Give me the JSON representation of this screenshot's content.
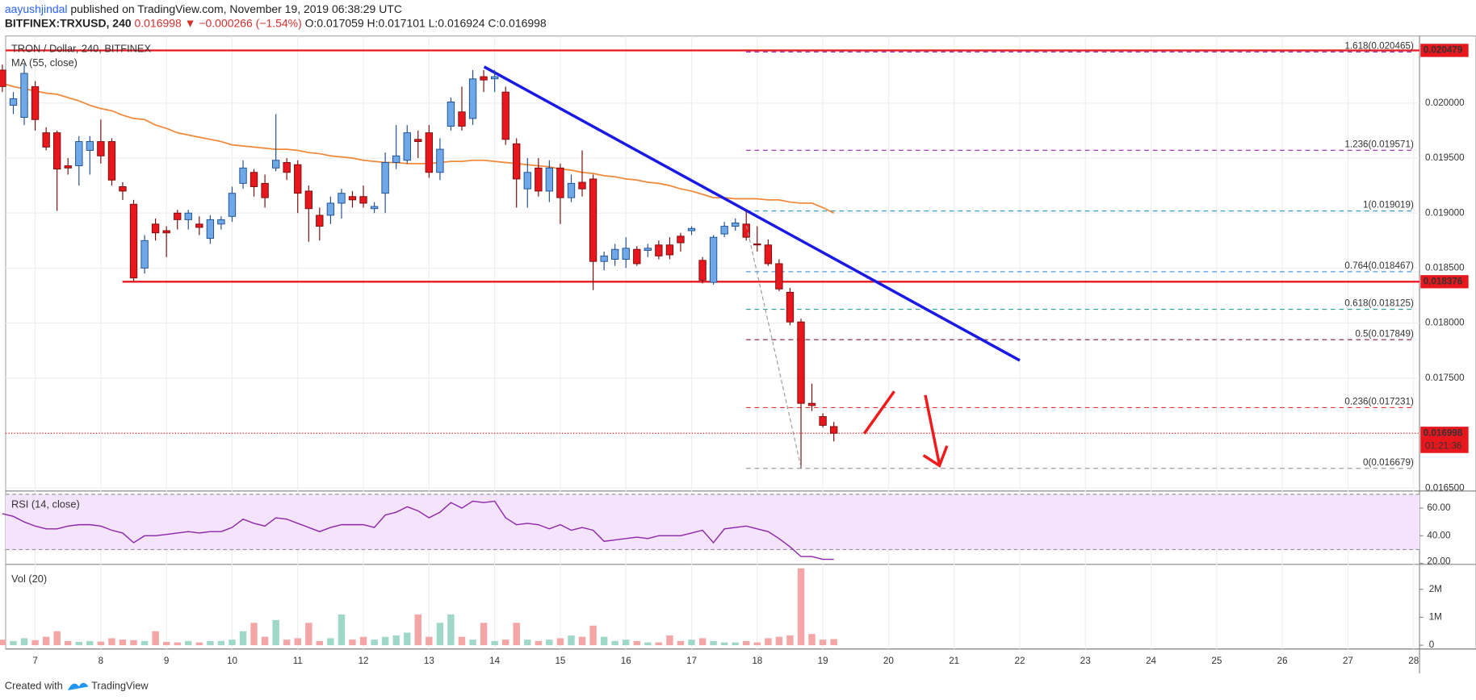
{
  "chart_data": {
    "type": "candlestick",
    "title": "TRON / Dollar, 240, BITFINEX",
    "publisher": "aayushjindal",
    "published": "published on TradingView.com, November 19, 2019 06:38:29 UTC",
    "symbol": "BITFINEX:TRXUSD, 240",
    "change": "0.016998 ▼ −0.000266 (−1.54%)",
    "ohlc_text": "O:0.017059 H:0.017101 L:0.016924 C:0.016998",
    "footer": "Created with",
    "brand": "TradingView",
    "x": [
      6.5,
      6.667,
      6.833,
      7,
      7.167,
      7.333,
      7.5,
      7.667,
      7.833,
      8,
      8.167,
      8.333,
      8.5,
      8.667,
      8.833,
      9,
      9.167,
      9.333,
      9.5,
      9.667,
      9.833,
      10,
      10.167,
      10.333,
      10.5,
      10.667,
      10.833,
      11,
      11.167,
      11.333,
      11.5,
      11.667,
      11.833,
      12,
      12.167,
      12.333,
      12.5,
      12.667,
      12.833,
      13,
      13.167,
      13.333,
      13.5,
      13.667,
      13.833,
      14,
      14.167,
      14.333,
      14.5,
      14.667,
      14.833,
      15,
      15.167,
      15.333,
      15.5,
      15.667,
      15.833,
      16,
      16.167,
      16.333,
      16.5,
      16.667,
      16.833,
      17,
      17.167,
      17.333,
      17.5,
      17.667,
      17.833,
      18,
      18.167,
      18.333,
      18.5,
      18.667,
      18.833,
      19,
      19.167
    ],
    "xlim": [
      6.55,
      28.09
    ],
    "xticks": [
      7,
      8,
      9,
      10,
      11,
      12,
      13,
      14,
      15,
      16,
      17,
      18,
      19,
      20,
      21,
      22,
      23,
      24,
      25,
      26,
      27,
      28
    ],
    "open": [
      0.0203,
      0.01998,
      0.01987,
      0.02015,
      0.01973,
      0.01973,
      0.01943,
      0.01943,
      0.01957,
      0.01965,
      0.01965,
      0.01924,
      0.01908,
      0.0185,
      0.0189,
      0.01884,
      0.019,
      0.01894,
      0.0189,
      0.01877,
      0.0189,
      0.01897,
      0.01927,
      0.01937,
      0.01927,
      0.01941,
      0.01946,
      0.01944,
      0.0192,
      0.01898,
      0.01898,
      0.01909,
      0.01915,
      0.01915,
      0.01904,
      0.01918,
      0.01946,
      0.01948,
      0.01967,
      0.01973,
      0.01937,
      0.01979,
      0.01992,
      0.01986,
      0.02024,
      0.02022,
      0.0201,
      0.01963,
      0.01922,
      0.01941,
      0.0192,
      0.01941,
      0.01914,
      0.01928,
      0.01931,
      0.01856,
      0.01858,
      0.01858,
      0.01867,
      0.01866,
      0.01871,
      0.01871,
      0.01879,
      0.01884,
      0.01857,
      0.01837,
      0.01881,
      0.01888,
      0.0189,
      0.01872,
      0.01871,
      0.01854,
      0.01828,
      0.01801,
      0.01727,
      0.01715,
      0.017059
    ],
    "high": [
      0.02035,
      0.0201,
      0.02035,
      0.0202,
      0.01978,
      0.01975,
      0.0195,
      0.0197,
      0.0197,
      0.01985,
      0.01968,
      0.01928,
      0.01912,
      0.0188,
      0.01895,
      0.01888,
      0.01903,
      0.01903,
      0.01897,
      0.01898,
      0.01897,
      0.01924,
      0.01948,
      0.0194,
      0.01935,
      0.0199,
      0.0195,
      0.01948,
      0.01925,
      0.01905,
      0.01915,
      0.01922,
      0.0192,
      0.01925,
      0.0191,
      0.01955,
      0.0198,
      0.0198,
      0.01975,
      0.0198,
      0.01968,
      0.02005,
      0.02015,
      0.0203,
      0.0203,
      0.0203,
      0.02015,
      0.01968,
      0.0195,
      0.0195,
      0.01948,
      0.01945,
      0.01935,
      0.01957,
      0.01935,
      0.01865,
      0.01872,
      0.01878,
      0.0187,
      0.01872,
      0.01875,
      0.01878,
      0.01882,
      0.01888,
      0.0186,
      0.0188,
      0.01892,
      0.01895,
      0.01902,
      0.01888,
      0.01876,
      0.01858,
      0.01832,
      0.01804,
      0.01745,
      0.01718,
      0.017101
    ],
    "low": [
      0.0201,
      0.0199,
      0.0198,
      0.01975,
      0.01957,
      0.01902,
      0.01935,
      0.01925,
      0.01935,
      0.01945,
      0.01925,
      0.01912,
      0.01838,
      0.01845,
      0.01875,
      0.0186,
      0.01885,
      0.01885,
      0.0188,
      0.01872,
      0.01885,
      0.01892,
      0.01922,
      0.01915,
      0.01905,
      0.01938,
      0.0193,
      0.019,
      0.01874,
      0.01875,
      0.0189,
      0.01895,
      0.01905,
      0.01905,
      0.019,
      0.019,
      0.0194,
      0.01945,
      0.0195,
      0.01932,
      0.0193,
      0.01975,
      0.01975,
      0.0198,
      0.0201,
      0.0201,
      0.01962,
      0.01905,
      0.01905,
      0.01915,
      0.0191,
      0.0189,
      0.0191,
      0.01915,
      0.0183,
      0.01848,
      0.01852,
      0.0185,
      0.01852,
      0.0186,
      0.01858,
      0.01858,
      0.01865,
      0.0188,
      0.01836,
      0.01835,
      0.01878,
      0.01884,
      0.01875,
      0.01865,
      0.01852,
      0.01829,
      0.01798,
      0.01668,
      0.0172,
      0.01705,
      0.016924
    ],
    "close": [
      0.02015,
      0.02004,
      0.02027,
      0.01985,
      0.0196,
      0.0194,
      0.01941,
      0.01965,
      0.01965,
      0.01952,
      0.0193,
      0.0192,
      0.01841,
      0.01875,
      0.01882,
      0.01882,
      0.01894,
      0.019,
      0.01887,
      0.01894,
      0.01894,
      0.01918,
      0.01941,
      0.01924,
      0.01914,
      0.01948,
      0.01937,
      0.01918,
      0.01904,
      0.01888,
      0.01909,
      0.01918,
      0.01912,
      0.01909,
      0.01906,
      0.01946,
      0.01952,
      0.01973,
      0.01965,
      0.01937,
      0.01958,
      0.02001,
      0.01979,
      0.02022,
      0.02021,
      0.02024,
      0.01967,
      0.01931,
      0.01937,
      0.0192,
      0.01941,
      0.01914,
      0.01927,
      0.01922,
      0.01856,
      0.01861,
      0.01867,
      0.01868,
      0.01854,
      0.01868,
      0.01861,
      0.01862,
      0.01873,
      0.01886,
      0.01839,
      0.01878,
      0.01888,
      0.01891,
      0.01878,
      0.01871,
      0.01854,
      0.01831,
      0.01801,
      0.01727,
      0.01725,
      0.01707,
      0.016998
    ],
    "up_color": "#6fa8e8",
    "down_color": "#e8171d",
    "ylim": [
      0.01649,
      0.02061
    ],
    "yticks": [
      {
        "value": 0.0165,
        "label": "0.016500"
      },
      {
        "value": 0.017,
        "label": "0.017000"
      },
      {
        "value": 0.0175,
        "label": "0.017500"
      },
      {
        "value": 0.018,
        "label": "0.018000"
      },
      {
        "value": 0.0185,
        "label": "0.018500"
      },
      {
        "value": 0.019,
        "label": "0.019000"
      },
      {
        "value": 0.0195,
        "label": "0.019500"
      },
      {
        "value": 0.02,
        "label": "0.020000"
      }
    ],
    "grid": true,
    "ma": {
      "name": "MA (55, close)",
      "color": "#f0883a",
      "values": [
        0.02018,
        0.02015,
        0.02013,
        0.02011,
        0.02009,
        0.02008,
        0.02005,
        0.02002,
        0.01998,
        0.01995,
        0.01993,
        0.01989,
        0.01986,
        0.01985,
        0.0198,
        0.01977,
        0.01973,
        0.01971,
        0.01969,
        0.01967,
        0.01965,
        0.01962,
        0.01961,
        0.0196,
        0.01959,
        0.01958,
        0.01958,
        0.01957,
        0.01955,
        0.01954,
        0.01952,
        0.01951,
        0.0195,
        0.01948,
        0.01947,
        0.01946,
        0.01946,
        0.01945,
        0.01945,
        0.01945,
        0.01946,
        0.01947,
        0.01947,
        0.01948,
        0.01948,
        0.01947,
        0.01946,
        0.01945,
        0.01944,
        0.01943,
        0.01942,
        0.0194,
        0.01939,
        0.01937,
        0.01936,
        0.01934,
        0.01933,
        0.01931,
        0.0193,
        0.01928,
        0.01927,
        0.01925,
        0.01922,
        0.0192,
        0.01917,
        0.01914,
        0.01914,
        0.01913,
        0.01913,
        0.01913,
        0.01912,
        0.01912,
        0.0191,
        0.01909,
        0.01909,
        0.01905,
        0.019
      ]
    },
    "levels": [
      {
        "value": 0.020479,
        "from": 6.55,
        "color": "#e8171d"
      },
      {
        "value": 0.018376,
        "from": 8.33,
        "color": "#e8171d"
      }
    ],
    "last": {
      "value": 0.016998,
      "countdown": "01:21:36",
      "color": "#e8171d"
    },
    "trendline": {
      "x": [
        13.84,
        22.0
      ],
      "y": [
        0.02033,
        0.01766
      ],
      "color": "#1a1ae6"
    },
    "fib": {
      "x": [
        17.83,
        28.03
      ],
      "levels": [
        {
          "value": 0.020465,
          "label": "1.618(0.020465)",
          "color": "#9c27b0"
        },
        {
          "value": 0.019571,
          "label": "1.236(0.019571)",
          "color": "#9c27b0"
        },
        {
          "value": 0.019019,
          "label": "1(0.019019)",
          "color": "#3aa0d0"
        },
        {
          "value": 0.018467,
          "label": "0.764(0.018467)",
          "color": "#3a8fd6"
        },
        {
          "value": 0.018125,
          "label": "0.618(0.018125)",
          "color": "#26a69a"
        },
        {
          "value": 0.017849,
          "label": "0.5(0.017849)",
          "color": "#7b1f3a"
        },
        {
          "value": 0.017231,
          "label": "0.236(0.017231)",
          "color": "#e53935"
        },
        {
          "value": 0.016679,
          "label": "0(0.016679)",
          "color": "#9e9e9e"
        }
      ]
    },
    "rsi": {
      "name": "RSI (14, close)",
      "color": "#8e24aa",
      "values": [
        56,
        54,
        50,
        47,
        45,
        45,
        47,
        48,
        48,
        47,
        44,
        42,
        35,
        40,
        40,
        41,
        42,
        43,
        42,
        43,
        43,
        46,
        52,
        49,
        47,
        53,
        52,
        49,
        46,
        43,
        46,
        48,
        48,
        48,
        46,
        55,
        57,
        61,
        58,
        53,
        57,
        64,
        60,
        65,
        64,
        65,
        53,
        48,
        49,
        48,
        45,
        48,
        44,
        46,
        44,
        36,
        37,
        38,
        39,
        38,
        40,
        40,
        40,
        42,
        44,
        35,
        45,
        46,
        47,
        45,
        43,
        38,
        32,
        25,
        25,
        23,
        23
      ],
      "ylim": [
        20.7,
        70.3
      ],
      "yticks": [
        {
          "value": 60,
          "label": "60.00"
        },
        {
          "value": 40,
          "label": "40.00"
        },
        {
          "value": 20,
          "label": "20.00"
        }
      ],
      "bands": [
        70,
        30
      ]
    },
    "volume": {
      "name": "Vol (20)",
      "values": [
        200000,
        150000,
        250000,
        180000,
        300000,
        500000,
        150000,
        120000,
        150000,
        130000,
        250000,
        200000,
        180000,
        150000,
        500000,
        120000,
        100000,
        150000,
        100000,
        150000,
        150000,
        200000,
        500000,
        800000,
        300000,
        900000,
        200000,
        250000,
        800000,
        150000,
        250000,
        1100000,
        200000,
        300000,
        200000,
        300000,
        350000,
        450000,
        1100000,
        300000,
        800000,
        1100000,
        300000,
        200000,
        800000,
        150000,
        200000,
        800000,
        200000,
        150000,
        200000,
        250000,
        350000,
        300000,
        700000,
        300000,
        150000,
        200000,
        150000,
        100000,
        100000,
        350000,
        150000,
        200000,
        250000,
        150000,
        100000,
        100000,
        150000,
        100000,
        250000,
        300000,
        350000,
        2750000,
        400000,
        200000,
        220000
      ],
      "ylim": [
        0,
        2790000
      ],
      "yticks": [
        0,
        {
          "value": 1000000,
          "label": "1M"
        },
        {
          "value": 2000000,
          "label": "2M"
        }
      ],
      "up_color": "#9fd8c8",
      "down_color": "#f4a6a6"
    }
  }
}
